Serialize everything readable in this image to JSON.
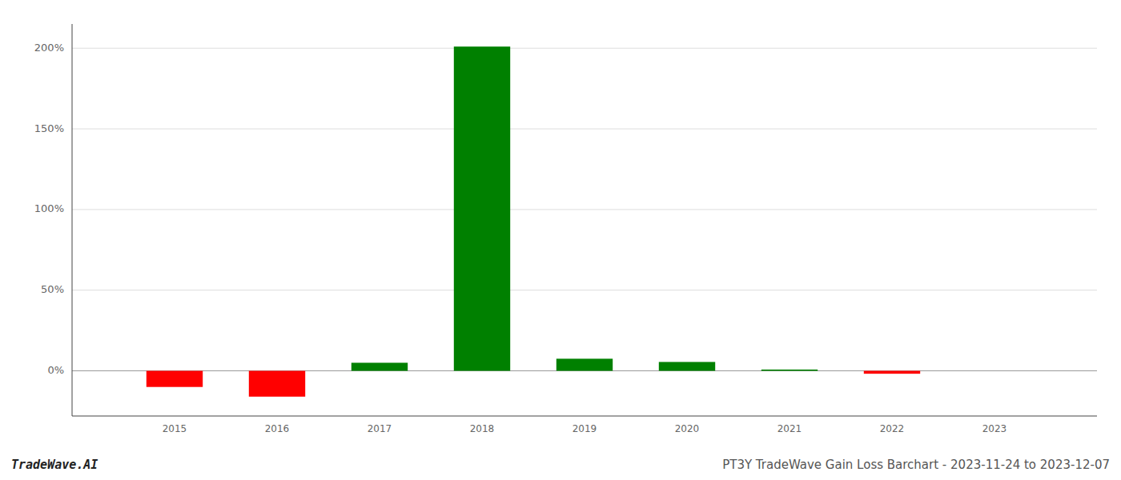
{
  "chart_data": {
    "type": "bar",
    "title": "PT3Y TradeWave Gain Loss Barchart - 2023-11-24 to 2023-12-07",
    "subtitle": "TradeWave.AI",
    "x": [
      2015,
      2016,
      2017,
      2018,
      2019,
      2020,
      2021,
      2022,
      2023
    ],
    "values": [
      -0.1,
      -0.16,
      0.05,
      2.01,
      0.075,
      0.055,
      0.008,
      -0.018,
      0.0
    ],
    "colors": [
      "red",
      "red",
      "green",
      "green",
      "green",
      "green",
      "green",
      "red",
      "green"
    ],
    "xlim": [
      2014.0,
      2024.0
    ],
    "xticks": [
      2015,
      2016,
      2017,
      2018,
      2019,
      2020,
      2021,
      2022,
      2023
    ],
    "ylim": [
      -0.28,
      2.15
    ],
    "yticks": [
      {
        "value": 0.0,
        "label": "0%"
      },
      {
        "value": 0.5,
        "label": "50%"
      },
      {
        "value": 1.0,
        "label": "100%"
      },
      {
        "value": 1.5,
        "label": "150%"
      },
      {
        "value": 2.0,
        "label": "200%"
      }
    ],
    "grid": true
  }
}
